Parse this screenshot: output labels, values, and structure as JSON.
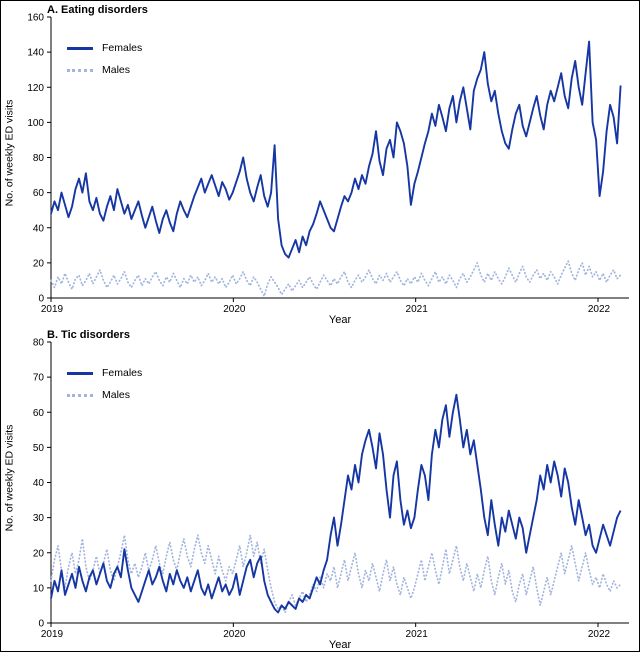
{
  "figure": {
    "border_color": "#000000",
    "background": "#ffffff"
  },
  "chart_data": [
    {
      "type": "line",
      "title": "A. Eating disorders",
      "xlabel": "Year",
      "ylabel": "No. of weekly ED visits",
      "ylim": [
        0,
        160
      ],
      "yticks": [
        0,
        20,
        40,
        60,
        80,
        100,
        120,
        140,
        160
      ],
      "xticks": [
        2019,
        2020,
        2021,
        2022
      ],
      "x_range": [
        2019,
        2022.17
      ],
      "x_start": 2019,
      "x_step": 0.019165,
      "x_unit": "week",
      "grid": false,
      "legend_position": "top-left",
      "series": [
        {
          "name": "Females",
          "color": "#1636a4",
          "style": "solid",
          "width": 1.9,
          "values": [
            48,
            55,
            50,
            60,
            53,
            46,
            52,
            62,
            68,
            60,
            71,
            55,
            50,
            57,
            48,
            44,
            52,
            58,
            50,
            62,
            55,
            48,
            53,
            45,
            50,
            55,
            47,
            40,
            46,
            52,
            44,
            37,
            45,
            50,
            43,
            38,
            48,
            55,
            50,
            46,
            52,
            58,
            63,
            68,
            60,
            65,
            70,
            64,
            58,
            66,
            62,
            56,
            60,
            66,
            72,
            80,
            68,
            60,
            55,
            63,
            70,
            58,
            52,
            60,
            87,
            45,
            30,
            25,
            23,
            28,
            33,
            26,
            35,
            30,
            38,
            42,
            48,
            55,
            50,
            45,
            40,
            38,
            45,
            52,
            58,
            55,
            60,
            68,
            62,
            70,
            65,
            75,
            82,
            95,
            78,
            70,
            85,
            90,
            80,
            100,
            95,
            88,
            75,
            53,
            65,
            72,
            80,
            88,
            95,
            105,
            98,
            110,
            103,
            95,
            108,
            115,
            100,
            112,
            120,
            108,
            96,
            118,
            125,
            130,
            140,
            122,
            112,
            118,
            105,
            95,
            88,
            85,
            96,
            105,
            110,
            98,
            92,
            100,
            108,
            115,
            104,
            96,
            110,
            118,
            112,
            120,
            128,
            115,
            108,
            125,
            135,
            120,
            110,
            128,
            146,
            100,
            90,
            58,
            72,
            95,
            110,
            103,
            88,
            121
          ]
        },
        {
          "name": "Males",
          "color": "#a3b4de",
          "style": "dotted",
          "width": 1.7,
          "values": [
            10,
            6,
            12,
            8,
            14,
            9,
            5,
            11,
            13,
            7,
            10,
            14,
            8,
            12,
            16,
            10,
            6,
            9,
            13,
            8,
            11,
            15,
            9,
            6,
            10,
            13,
            7,
            11,
            8,
            12,
            15,
            10,
            7,
            12,
            9,
            14,
            10,
            6,
            11,
            8,
            13,
            9,
            12,
            7,
            10,
            14,
            9,
            12,
            8,
            11,
            6,
            9,
            13,
            8,
            11,
            15,
            10,
            7,
            12,
            9,
            5,
            1,
            8,
            12,
            9,
            6,
            2,
            5,
            8,
            4,
            7,
            10,
            6,
            9,
            12,
            8,
            5,
            9,
            13,
            10,
            7,
            11,
            8,
            12,
            15,
            9,
            6,
            10,
            13,
            9,
            12,
            16,
            11,
            8,
            13,
            10,
            14,
            9,
            12,
            15,
            10,
            7,
            11,
            8,
            12,
            9,
            14,
            10,
            7,
            11,
            15,
            9,
            12,
            8,
            13,
            10,
            6,
            11,
            14,
            9,
            12,
            16,
            20,
            13,
            9,
            14,
            10,
            15,
            11,
            8,
            12,
            17,
            13,
            9,
            14,
            18,
            12,
            9,
            13,
            16,
            11,
            14,
            10,
            15,
            12,
            8,
            13,
            17,
            21,
            14,
            10,
            16,
            20,
            13,
            18,
            12,
            15,
            10,
            14,
            9,
            13,
            16,
            11,
            13
          ]
        }
      ]
    },
    {
      "type": "line",
      "title": "B. Tic disorders",
      "xlabel": "Year",
      "ylabel": "No. of weekly ED visits",
      "ylim": [
        0,
        80
      ],
      "yticks": [
        0,
        10,
        20,
        30,
        40,
        50,
        60,
        70,
        80
      ],
      "xticks": [
        2019,
        2020,
        2021,
        2022
      ],
      "x_range": [
        2019,
        2022.17
      ],
      "x_start": 2019,
      "x_step": 0.019165,
      "x_unit": "week",
      "grid": false,
      "legend_position": "top-left",
      "series": [
        {
          "name": "Females",
          "color": "#1636a4",
          "style": "solid",
          "width": 1.9,
          "values": [
            7,
            12,
            9,
            15,
            8,
            11,
            14,
            10,
            16,
            12,
            9,
            13,
            15,
            11,
            14,
            17,
            12,
            10,
            14,
            16,
            13,
            21,
            15,
            10,
            8,
            6,
            9,
            12,
            15,
            11,
            13,
            16,
            12,
            9,
            14,
            11,
            15,
            12,
            10,
            13,
            9,
            12,
            15,
            10,
            8,
            11,
            7,
            10,
            13,
            9,
            11,
            8,
            10,
            14,
            8,
            12,
            16,
            18,
            13,
            17,
            19,
            12,
            8,
            6,
            4,
            3,
            5,
            4,
            6,
            5,
            4,
            7,
            6,
            8,
            7,
            10,
            13,
            11,
            15,
            18,
            25,
            30,
            22,
            28,
            35,
            42,
            38,
            45,
            40,
            48,
            52,
            55,
            50,
            44,
            54,
            48,
            38,
            30,
            42,
            46,
            35,
            28,
            32,
            27,
            30,
            38,
            45,
            42,
            35,
            48,
            55,
            50,
            58,
            62,
            53,
            60,
            65,
            58,
            50,
            55,
            48,
            52,
            45,
            38,
            30,
            25,
            35,
            28,
            22,
            30,
            26,
            32,
            28,
            24,
            30,
            27,
            20,
            25,
            30,
            35,
            42,
            38,
            45,
            40,
            46,
            42,
            36,
            44,
            40,
            33,
            28,
            35,
            30,
            25,
            28,
            22,
            20,
            24,
            28,
            25,
            22,
            26,
            30,
            32
          ]
        },
        {
          "name": "Males",
          "color": "#a3b4de",
          "style": "dotted",
          "width": 1.7,
          "values": [
            12,
            18,
            22,
            15,
            10,
            16,
            20,
            14,
            18,
            24,
            16,
            12,
            15,
            19,
            14,
            17,
            21,
            15,
            12,
            16,
            20,
            25,
            18,
            14,
            17,
            13,
            16,
            20,
            15,
            18,
            22,
            17,
            14,
            19,
            23,
            18,
            15,
            20,
            24,
            19,
            16,
            21,
            25,
            20,
            17,
            22,
            18,
            14,
            19,
            15,
            12,
            16,
            14,
            18,
            22,
            16,
            20,
            25,
            19,
            23,
            17,
            21,
            15,
            10,
            6,
            4,
            5,
            3,
            6,
            8,
            5,
            7,
            9,
            6,
            8,
            11,
            9,
            13,
            10,
            14,
            12,
            16,
            10,
            14,
            18,
            12,
            16,
            20,
            14,
            10,
            15,
            12,
            17,
            13,
            9,
            14,
            18,
            12,
            16,
            11,
            8,
            13,
            10,
            7,
            10,
            14,
            18,
            12,
            16,
            20,
            15,
            11,
            16,
            21,
            14,
            18,
            22,
            16,
            12,
            17,
            13,
            9,
            14,
            10,
            15,
            19,
            12,
            8,
            13,
            17,
            11,
            15,
            9,
            6,
            11,
            14,
            8,
            12,
            16,
            10,
            5,
            9,
            13,
            8,
            12,
            16,
            20,
            14,
            18,
            22,
            17,
            12,
            16,
            20,
            15,
            11,
            13,
            10,
            14,
            11,
            9,
            12,
            10,
            11
          ]
        }
      ]
    }
  ]
}
